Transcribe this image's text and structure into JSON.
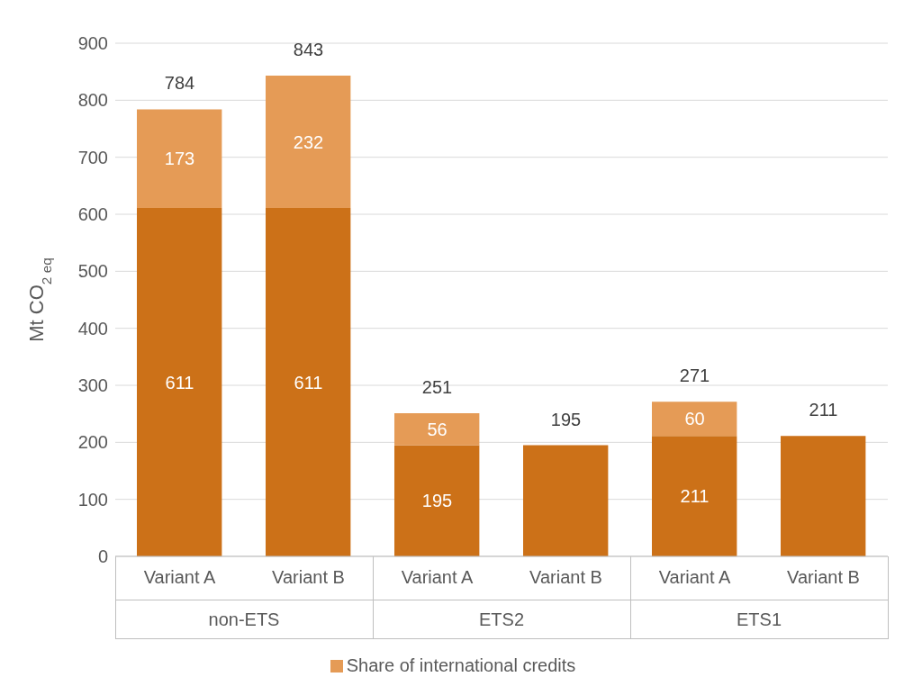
{
  "chart_data": {
    "type": "bar",
    "ylabel": "Mt CO$_{2 eq}$",
    "categories": [
      "Variant A",
      "Variant B",
      "Variant A",
      "Variant B",
      "Variant A",
      "Variant B"
    ],
    "annotations": [
      "non-ETS",
      "ETS2",
      "ETS1"
    ],
    "stacked": true,
    "series": [
      {
        "color": "#cc7118",
        "values": [
          611,
          611,
          195,
          195,
          211,
          211
        ],
        "value_labels": [
          "611",
          "611",
          "195",
          null,
          "211",
          null
        ]
      },
      {
        "name": "Share of international credits",
        "color": "#e59b56",
        "values": [
          173,
          232,
          56,
          null,
          60,
          null
        ],
        "value_labels": [
          "173",
          "232",
          "56",
          null,
          "60",
          null
        ]
      }
    ],
    "totals": [
      "784",
      "843",
      "251",
      "195",
      "271",
      "211"
    ],
    "ylim": [
      0,
      900
    ],
    "yticks": [
      0,
      100,
      200,
      300,
      400,
      500,
      600,
      700,
      800,
      900
    ],
    "grid": "y",
    "legend": "bottom"
  }
}
